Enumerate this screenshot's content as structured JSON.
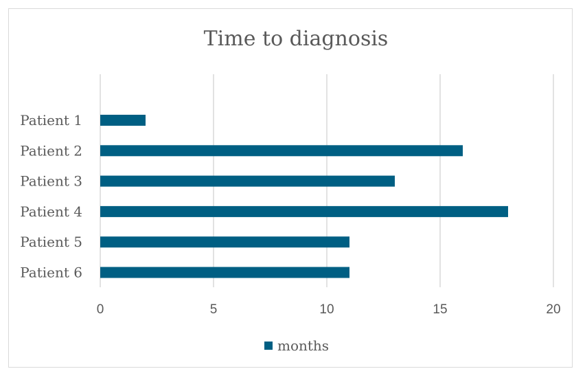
{
  "chart_data": {
    "type": "bar",
    "orientation": "horizontal",
    "title": "Time to diagnosis",
    "categories": [
      "Patient 1",
      "Patient 2",
      "Patient 3",
      "Patient 4",
      "Patient 5",
      "Patient 6"
    ],
    "series": [
      {
        "name": "months",
        "values": [
          2,
          16,
          13,
          18,
          11,
          11
        ],
        "color": "#005f83"
      }
    ],
    "xlim": [
      0,
      20
    ],
    "xticks": [
      0,
      5,
      10,
      15,
      20
    ],
    "grid": true,
    "legend": "bottom"
  }
}
